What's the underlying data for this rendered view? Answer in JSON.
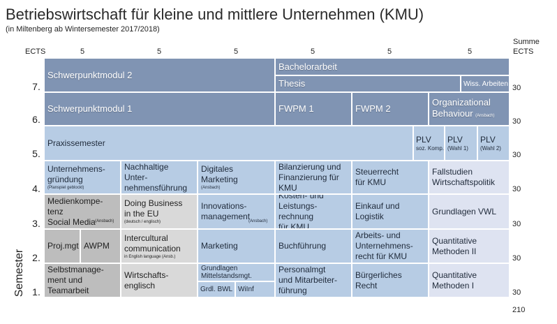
{
  "title": "Betriebswirtschaft für kleine und mittlere Unternehmen (KMU)",
  "subtitle": "(in Miltenberg ab Wintersemester 2017/2018)",
  "ects_label": "ECTS",
  "ects_values": [
    "5",
    "5",
    "5",
    "5",
    "5",
    "5"
  ],
  "summe_label": "Summe ECTS",
  "axis_label": "Semester",
  "semesters": [
    {
      "label": "7.",
      "sum": "30"
    },
    {
      "label": "6.",
      "sum": "30"
    },
    {
      "label": "5.",
      "sum": "30"
    },
    {
      "label": "4.",
      "sum": "30"
    },
    {
      "label": "3.",
      "sum": "30"
    },
    {
      "label": "2.",
      "sum": "30"
    },
    {
      "label": "1.",
      "sum": "30"
    }
  ],
  "total": "210",
  "modules": {
    "s7_schwerpunkt2": "Schwerpunktmodul 2",
    "s7_bachelorarbeit": "Bachelorarbeit",
    "s7_thesis": "Thesis",
    "s7_wiss": "Wiss. Arbeiten",
    "s6_schwerpunkt1": "Schwerpunktmodul 1",
    "s6_fwpm1": "FWPM 1",
    "s6_fwpm2": "FWPM 2",
    "s6_org": "Organizational",
    "s6_org2": "Behaviour",
    "s6_org_note": "(Ansbach)",
    "s5_praxis": "Praxissemester",
    "s5_plv1": "PLV",
    "s5_plv1_note": "soz. Komp.",
    "s5_plv2": "PLV",
    "s5_plv2_note": "(Wahl 1)",
    "s5_plv3": "PLV",
    "s5_plv3_note": "(Wahl 2)",
    "s4_ug": "Unternehmens-\ngründung",
    "s4_ug_note": "(Planspiel geblockt)",
    "s4_nuf": "Nachhaltige Unter-\nnehmensführung",
    "s4_dm": "Digitales Marketing",
    "s4_dm_note": "(Ansbach)",
    "s4_bil": "Bilanzierung und\nFinanzierung für\nKMU",
    "s4_steuer": "Steuerrecht\nfür KMU",
    "s4_fall": "Fallstudien\nWirtschaftspolitik",
    "s3_medien": "Medienkompe-tenz\nSocial Media",
    "s3_medien_note": "(Ansbach)",
    "s3_eu": "Doing Business\nin the EU",
    "s3_eu_note": "(deutsch / englisch)",
    "s3_innov": "Innovations-\nmanagement",
    "s3_innov_note": "(Ansbach)",
    "s3_klr": "Kosten- und\nLeistungs-rechnung\nfür KMU",
    "s3_einkauf": "Einkauf und\nLogistik",
    "s3_vwl": "Grundlagen VWL",
    "s2_projmgt": "Proj.mgt",
    "s2_awpm": "AWPM",
    "s2_icc": "Intercultural\ncommunication",
    "s2_icc_note": "in English language (Ansb.)",
    "s2_marketing": "Marketing",
    "s2_buch": "Buchführung",
    "s2_arbeit": "Arbeits- und\nUnternehmens-\nrecht für KMU",
    "s2_qm2": "Quantitative\nMethoden II",
    "s1_selbst": "Selbstmanage-\nment und\nTeamarbeit",
    "s1_we": "Wirtschafts-\nenglisch",
    "s1_gms": "Grundlagen\nMittelstandsmgt.",
    "s1_bwl": "Grdl. BWL",
    "s1_wiinf": "WiInf",
    "s1_pers": "Personalmgt\nund Mitarbeiter-\nführung",
    "s1_br": "Bürgerliches Recht",
    "s1_qm1": "Quantitative\nMethoden I"
  },
  "colors": {
    "dark": "#8094b3",
    "medium": "#b7cce4",
    "lavender": "#dee3f1",
    "light_gray": "#d9d9d9",
    "mid_gray": "#bdbdbd"
  }
}
